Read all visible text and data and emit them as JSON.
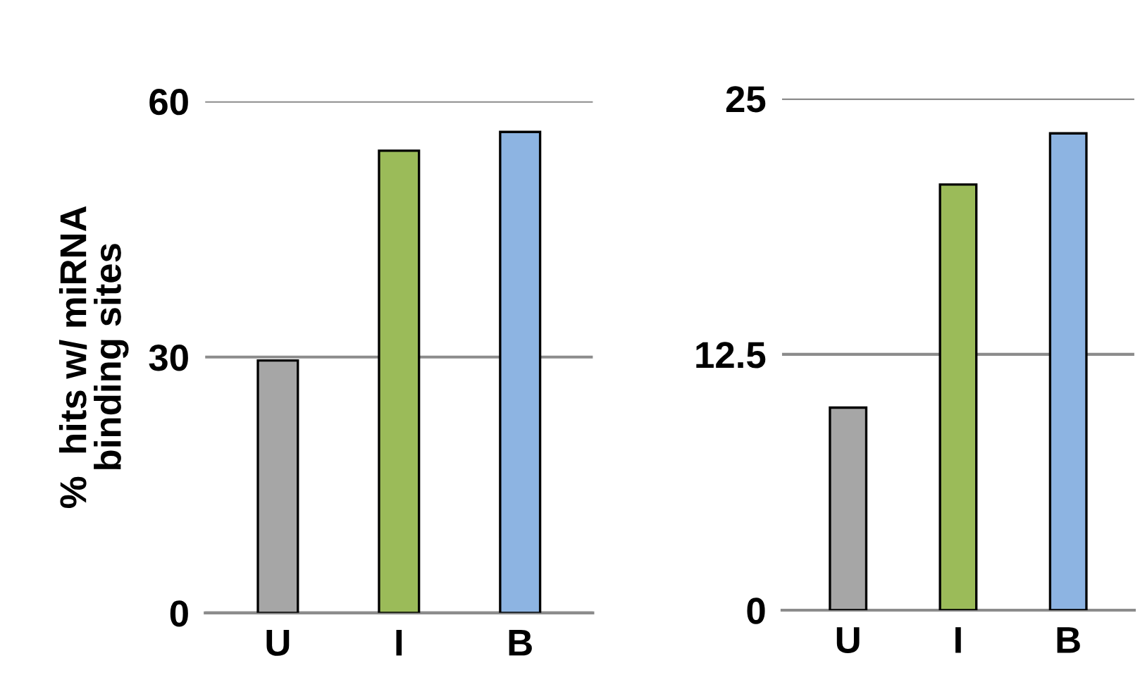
{
  "chart_data": [
    {
      "type": "bar",
      "ylabel": "%  hits w/ miRNA\nbinding sites",
      "categories": [
        "U",
        "I",
        "B"
      ],
      "values": [
        29.6,
        54.2,
        56.4
      ],
      "colors": [
        "#a6a6a6",
        "#9bbb59",
        "#8db4e2"
      ],
      "ylim": [
        0,
        60
      ],
      "yticks": [
        0,
        30,
        60
      ],
      "grid": "y",
      "legend": false
    },
    {
      "type": "bar",
      "categories": [
        "U",
        "I",
        "B"
      ],
      "values": [
        9.9,
        20.8,
        23.3
      ],
      "colors": [
        "#a6a6a6",
        "#9bbb59",
        "#8db4e2"
      ],
      "ylim": [
        0,
        25
      ],
      "yticks": [
        0,
        12.5,
        25
      ],
      "grid": "y",
      "legend": false
    }
  ]
}
